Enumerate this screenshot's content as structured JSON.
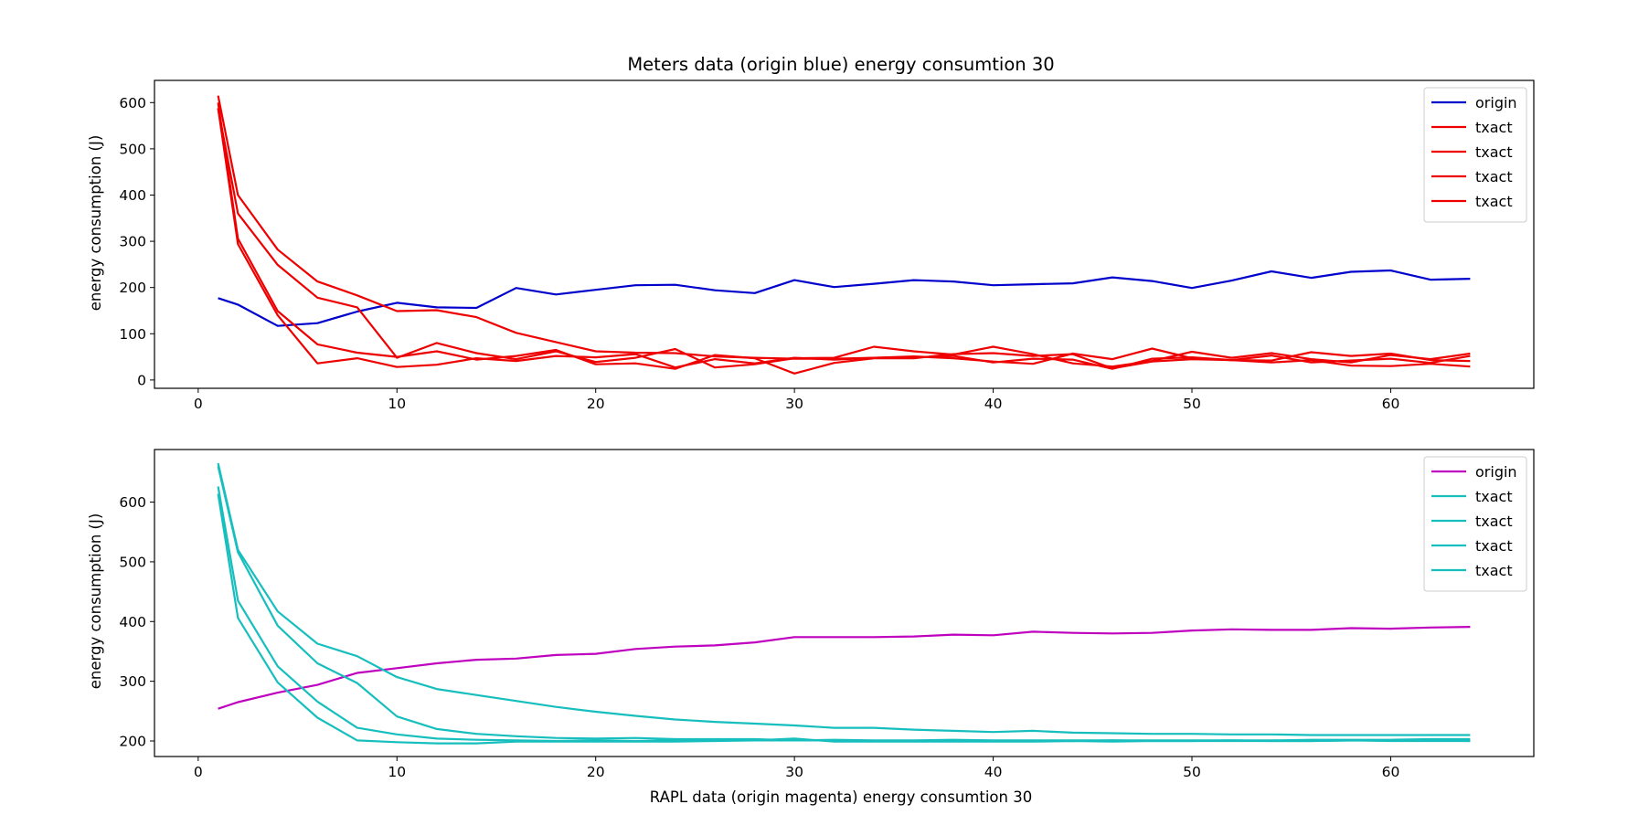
{
  "chart_data": [
    {
      "type": "line",
      "title": "Meters data (origin blue) energy consumtion 30",
      "xlabel": "",
      "ylabel": "energy consumption (J)",
      "xlim": [
        -2.2,
        67.2
      ],
      "ylim": [
        -18,
        648
      ],
      "xticks": [
        0,
        10,
        20,
        30,
        40,
        50,
        60
      ],
      "yticks": [
        0,
        100,
        200,
        300,
        400,
        500,
        600
      ],
      "grid": false,
      "legend_position": "top-right",
      "series": [
        {
          "name": "origin",
          "color": "#0000cc",
          "x": [
            1,
            2,
            4,
            6,
            8,
            10,
            12,
            14,
            16,
            18,
            20,
            22,
            24,
            26,
            28,
            30,
            32,
            34,
            36,
            38,
            40,
            42,
            44,
            46,
            48,
            50,
            52,
            54,
            56,
            58,
            60,
            62,
            64
          ],
          "y": [
            177,
            163,
            117,
            123,
            148,
            167,
            157,
            156,
            199,
            185,
            195,
            205,
            206,
            194,
            188,
            216,
            201,
            208,
            216,
            213,
            205,
            207,
            209,
            222,
            214,
            199,
            215,
            235,
            221,
            234,
            237,
            217,
            219
          ]
        },
        {
          "name": "txact",
          "color": "#ee0000",
          "x": [
            1,
            2,
            4,
            6,
            8,
            10,
            12,
            14,
            16,
            18,
            20,
            22,
            24,
            26,
            28,
            30,
            32,
            34,
            36,
            38,
            40,
            42,
            44,
            46,
            48,
            50,
            52,
            54,
            56,
            58,
            60,
            62,
            64
          ],
          "y": [
            615,
            400,
            282,
            213,
            183,
            149,
            151,
            136,
            102,
            82,
            62,
            59,
            58,
            51,
            48,
            46,
            46,
            48,
            49,
            52,
            38,
            46,
            44,
            24,
            46,
            49,
            43,
            42,
            60,
            52,
            57,
            43,
            41
          ]
        },
        {
          "name": "txact",
          "color": "#ee0000",
          "x": [
            1,
            2,
            4,
            6,
            8,
            10,
            12,
            14,
            16,
            18,
            20,
            22,
            24,
            26,
            28,
            30,
            32,
            34,
            36,
            38,
            40,
            42,
            44,
            46,
            48,
            50,
            52,
            54,
            56,
            58,
            60,
            62,
            64
          ],
          "y": [
            588,
            360,
            249,
            178,
            157,
            48,
            80,
            58,
            45,
            62,
            39,
            48,
            67,
            27,
            34,
            47,
            48,
            72,
            62,
            55,
            72,
            56,
            36,
            29,
            41,
            61,
            48,
            58,
            45,
            38,
            54,
            45,
            57
          ]
        },
        {
          "name": "txact",
          "color": "#ee0000",
          "x": [
            1,
            2,
            4,
            6,
            8,
            10,
            12,
            14,
            16,
            18,
            20,
            22,
            24,
            26,
            28,
            30,
            32,
            34,
            36,
            38,
            40,
            42,
            44,
            46,
            48,
            50,
            52,
            54,
            56,
            58,
            60,
            62,
            64
          ],
          "y": [
            600,
            306,
            149,
            77,
            59,
            50,
            62,
            44,
            52,
            65,
            34,
            36,
            24,
            54,
            47,
            14,
            37,
            47,
            47,
            56,
            58,
            52,
            56,
            25,
            40,
            45,
            43,
            53,
            38,
            42,
            46,
            37,
            52
          ]
        },
        {
          "name": "txact",
          "color": "#ee0000",
          "x": [
            1,
            2,
            4,
            6,
            8,
            10,
            12,
            14,
            16,
            18,
            20,
            22,
            24,
            26,
            28,
            30,
            32,
            34,
            36,
            38,
            40,
            42,
            44,
            46,
            48,
            50,
            52,
            54,
            56,
            58,
            60,
            62,
            64
          ],
          "y": [
            588,
            294,
            140,
            36,
            47,
            28,
            33,
            47,
            41,
            52,
            49,
            56,
            27,
            45,
            36,
            48,
            44,
            48,
            51,
            47,
            40,
            35,
            57,
            45,
            68,
            47,
            43,
            38,
            43,
            31,
            30,
            35,
            29
          ]
        }
      ]
    },
    {
      "type": "line",
      "title": "",
      "xlabel": "RAPL data (origin magenta) energy consumtion 30",
      "ylabel": "energy consumption (J)",
      "xlim": [
        -2.2,
        67.2
      ],
      "ylim": [
        174,
        688
      ],
      "xticks": [
        0,
        10,
        20,
        30,
        40,
        50,
        60
      ],
      "yticks": [
        200,
        300,
        400,
        500,
        600
      ],
      "grid": false,
      "legend_position": "top-right",
      "series": [
        {
          "name": "origin",
          "color": "#bf00bf",
          "x": [
            1,
            2,
            4,
            6,
            8,
            10,
            12,
            14,
            16,
            18,
            20,
            22,
            24,
            26,
            28,
            30,
            32,
            34,
            36,
            38,
            40,
            42,
            44,
            46,
            48,
            50,
            52,
            54,
            56,
            58,
            60,
            62,
            64
          ],
          "y": [
            254,
            265,
            281,
            294,
            314,
            322,
            330,
            336,
            338,
            344,
            346,
            354,
            358,
            360,
            365,
            374,
            374,
            374,
            375,
            378,
            377,
            383,
            381,
            380,
            381,
            385,
            387,
            386,
            386,
            389,
            388,
            390,
            391
          ]
        },
        {
          "name": "txact",
          "color": "#17bebe",
          "x": [
            1,
            2,
            4,
            6,
            8,
            10,
            12,
            14,
            16,
            18,
            20,
            22,
            24,
            26,
            28,
            30,
            32,
            34,
            36,
            38,
            40,
            42,
            44,
            46,
            48,
            50,
            52,
            54,
            56,
            58,
            60,
            62,
            64
          ],
          "y": [
            665,
            520,
            417,
            363,
            342,
            307,
            287,
            277,
            267,
            257,
            249,
            242,
            236,
            232,
            229,
            226,
            222,
            222,
            219,
            217,
            215,
            217,
            214,
            213,
            212,
            212,
            211,
            211,
            210,
            210,
            210,
            210,
            210
          ]
        },
        {
          "name": "txact",
          "color": "#17bebe",
          "x": [
            1,
            2,
            4,
            6,
            8,
            10,
            12,
            14,
            16,
            18,
            20,
            22,
            24,
            26,
            28,
            30,
            32,
            34,
            36,
            38,
            40,
            42,
            44,
            46,
            48,
            50,
            52,
            54,
            56,
            58,
            60,
            62,
            64
          ],
          "y": [
            660,
            516,
            393,
            330,
            297,
            241,
            220,
            212,
            208,
            205,
            204,
            205,
            203,
            203,
            203,
            201,
            202,
            201,
            201,
            202,
            201,
            201,
            201,
            201,
            201,
            201,
            201,
            201,
            202,
            202,
            202,
            203,
            203
          ]
        },
        {
          "name": "txact",
          "color": "#17bebe",
          "x": [
            1,
            2,
            4,
            6,
            8,
            10,
            12,
            14,
            16,
            18,
            20,
            22,
            24,
            26,
            28,
            30,
            32,
            34,
            36,
            38,
            40,
            42,
            44,
            46,
            48,
            50,
            52,
            54,
            56,
            58,
            60,
            62,
            64
          ],
          "y": [
            626,
            435,
            325,
            266,
            222,
            211,
            204,
            202,
            201,
            200,
            201,
            200,
            201,
            201,
            201,
            201,
            201,
            200,
            200,
            200,
            200,
            200,
            200,
            201,
            200,
            200,
            201,
            200,
            200,
            201,
            200,
            200,
            200
          ]
        },
        {
          "name": "txact",
          "color": "#17bebe",
          "x": [
            1,
            2,
            4,
            6,
            8,
            10,
            12,
            14,
            16,
            18,
            20,
            22,
            24,
            26,
            28,
            30,
            32,
            34,
            36,
            38,
            40,
            42,
            44,
            46,
            48,
            50,
            52,
            54,
            56,
            58,
            60,
            62,
            64
          ],
          "y": [
            614,
            406,
            298,
            239,
            201,
            198,
            196,
            196,
            199,
            199,
            199,
            199,
            199,
            200,
            201,
            204,
            199,
            199,
            199,
            199,
            199,
            199,
            200,
            199,
            200,
            200,
            200,
            200,
            200,
            201,
            201,
            201,
            200
          ]
        }
      ]
    }
  ]
}
